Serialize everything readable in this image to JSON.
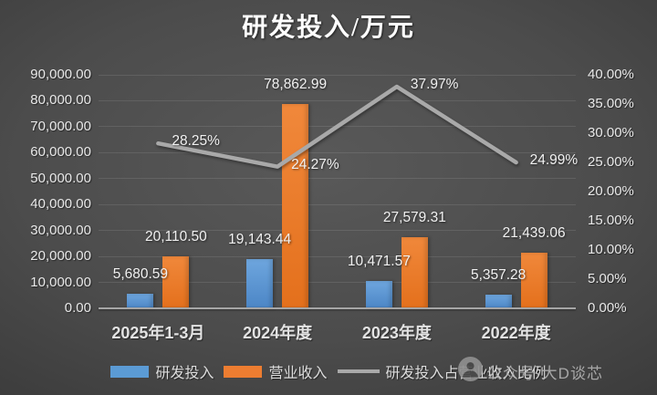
{
  "chart_data": {
    "type": "combo-bar-line",
    "title": "研发投入/万元",
    "categories": [
      "2025年1-3月",
      "2024年度",
      "2023年度",
      "2022年度"
    ],
    "series": [
      {
        "name": "研发投入",
        "type": "bar",
        "axis": "left",
        "color": "#5b9bd5",
        "values": [
          5680.59,
          19143.44,
          10471.57,
          5357.28
        ],
        "labels": [
          "5,680.59",
          "19,143.44",
          "10,471.57",
          "5,357.28"
        ]
      },
      {
        "name": "营业收入",
        "type": "bar",
        "axis": "left",
        "color": "#ed7d31",
        "values": [
          20110.5,
          78862.99,
          27579.31,
          21439.06
        ],
        "labels": [
          "20,110.50",
          "78,862.99",
          "27,579.31",
          "21,439.06"
        ]
      },
      {
        "name": "研发投入占营业收入比例",
        "type": "line",
        "axis": "right",
        "color": "#a9a9a9",
        "values": [
          28.25,
          24.27,
          37.97,
          24.99
        ],
        "labels": [
          "28.25%",
          "24.27%",
          "37.97%",
          "24.99%"
        ]
      }
    ],
    "left_axis": {
      "min": 0,
      "max": 90000,
      "tick_labels": [
        "0.00",
        "10,000.00",
        "20,000.00",
        "30,000.00",
        "40,000.00",
        "50,000.00",
        "60,000.00",
        "70,000.00",
        "80,000.00",
        "90,000.00"
      ]
    },
    "right_axis": {
      "min": 0,
      "max": 40,
      "tick_labels": [
        "0.00%",
        "5.00%",
        "10.00%",
        "15.00%",
        "20.00%",
        "25.00%",
        "30.00%",
        "35.00%",
        "40.00%"
      ]
    },
    "grid": true,
    "legend_position": "bottom"
  },
  "watermark": {
    "icon": "wechat-official-account-icon",
    "text": "公众号·大D谈芯"
  },
  "colors": {
    "background_center": "#595959",
    "background_edge": "#232323",
    "text": "#e9e9e9",
    "gridline": "#616161",
    "axis_line": "#a6a6a6",
    "bar_blue": "#5b9bd5",
    "bar_orange": "#ed7d31",
    "line_gray": "#a9a9a9"
  }
}
